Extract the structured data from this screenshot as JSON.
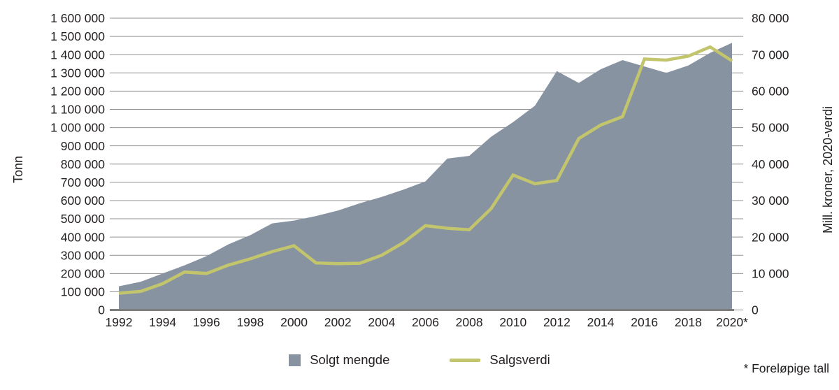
{
  "chart_data": {
    "type": "area",
    "subtype": "combo-area-left-axis-with-line-right-axis",
    "x": [
      1992,
      1993,
      1994,
      1995,
      1996,
      1997,
      1998,
      1999,
      2000,
      2001,
      2002,
      2003,
      2004,
      2005,
      2006,
      2007,
      2008,
      2009,
      2010,
      2011,
      2012,
      2013,
      2014,
      2015,
      2016,
      2017,
      2018,
      2019,
      2020
    ],
    "x_tick_labels": [
      "1992",
      "1994",
      "1996",
      "1998",
      "2000",
      "2002",
      "2004",
      "2006",
      "2008",
      "2010",
      "2012",
      "2014",
      "2016",
      "2018",
      "2020*"
    ],
    "series": [
      {
        "name": "Solgt mengde",
        "type": "area",
        "axis": "left",
        "unit": "tonn",
        "color": "#8893a2",
        "values": [
          130000,
          155000,
          200000,
          245000,
          295000,
          360000,
          410000,
          475000,
          490000,
          515000,
          545000,
          585000,
          620000,
          660000,
          705000,
          830000,
          845000,
          950000,
          1030000,
          1120000,
          1310000,
          1245000,
          1320000,
          1370000,
          1335000,
          1300000,
          1340000,
          1410000,
          1465000
        ]
      },
      {
        "name": "Salgsverdi",
        "type": "line",
        "axis": "right",
        "unit": "mill. kroner, 2020-verdi",
        "color": "#c2c56c",
        "values": [
          4600,
          5100,
          7200,
          10400,
          10000,
          12300,
          14000,
          16000,
          17600,
          12900,
          12700,
          12800,
          15000,
          18500,
          23100,
          22400,
          22000,
          27800,
          37000,
          34600,
          35500,
          47000,
          50700,
          53000,
          68800,
          68500,
          69600,
          72100,
          68300
        ]
      }
    ],
    "left_axis": {
      "label": "Tonn",
      "min": 0,
      "max": 1600000,
      "step": 100000,
      "tick_labels": [
        "0",
        "100 000",
        "200 000",
        "300 000",
        "400 000",
        "500 000",
        "600 000",
        "700 000",
        "800 000",
        "900 000",
        "1 000 000",
        "1 100 000",
        "1 200 000",
        "1 300 000",
        "1 400 000",
        "1 500 000",
        "1 600 000"
      ]
    },
    "right_axis": {
      "label": "Mill. kroner, 2020-verdi",
      "min": 0,
      "max": 80000,
      "step": 10000,
      "minor_step": 5000,
      "tick_labels": [
        "0",
        "10 000",
        "20 000",
        "30 000",
        "40 000",
        "50 000",
        "60 000",
        "70 000",
        "80 000"
      ]
    },
    "grid": true,
    "legend_position": "bottom-center",
    "footnote": "* Foreløpige tall"
  },
  "colors": {
    "grid": "#909090",
    "baseline": "#7d7d7d",
    "text": "#231f20",
    "background": "#ffffff"
  }
}
